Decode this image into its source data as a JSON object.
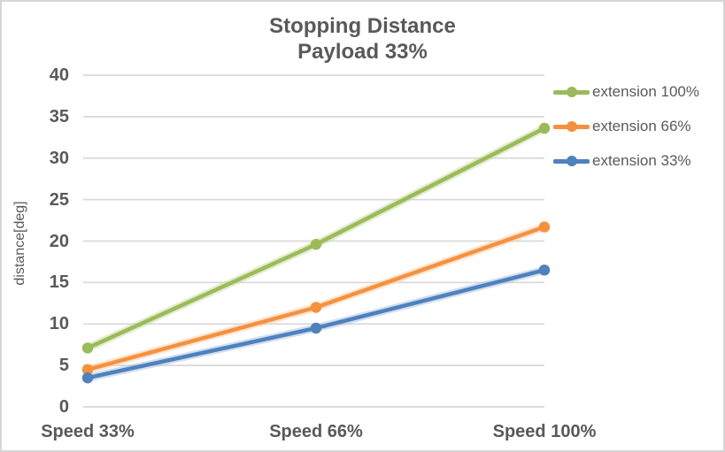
{
  "colors": {
    "text": "#595959",
    "gridline": "#d9d9d9",
    "border": "#d6d6d6",
    "background": "#ffffff"
  },
  "chart_data": {
    "type": "line",
    "title": "Stopping Distance",
    "subtitle": "Payload 33%",
    "xlabel": "",
    "ylabel": "distance[deg]",
    "categories": [
      "Speed 33%",
      "Speed 66%",
      "Speed 100%"
    ],
    "series": [
      {
        "name": "extension 100%",
        "color": "#9bbb59",
        "glow": "#ccdca8",
        "values": [
          7.1,
          19.6,
          33.6
        ]
      },
      {
        "name": "extension 66%",
        "color": "#f5913e",
        "glow": "#fad0ac",
        "values": [
          4.5,
          12.0,
          21.7
        ]
      },
      {
        "name": "extension 33%",
        "color": "#4f81bd",
        "glow": "#adc6e2",
        "values": [
          3.5,
          9.5,
          16.5
        ]
      }
    ],
    "ylim": [
      0,
      40
    ],
    "ytick_step": 5,
    "grid": true,
    "legend_position": "right",
    "marker": "circle"
  }
}
